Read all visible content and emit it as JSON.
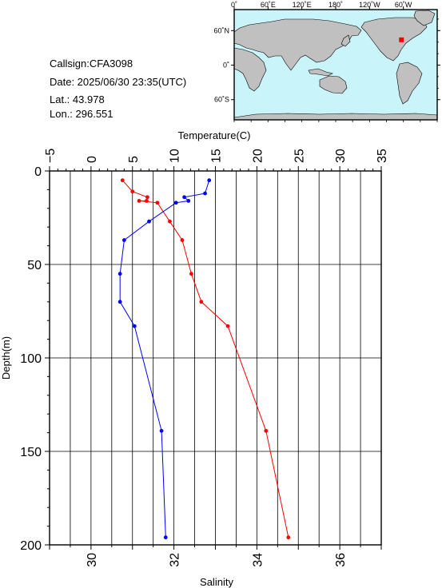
{
  "station": {
    "callsign": "Callsign:CFA3098",
    "date": "Date:  2025/06/30 23:35(UTC)",
    "lat": "Lat.:  43.978",
    "lon": "Lon.:  296.551"
  },
  "map": {
    "top_ticks": [
      "0˚",
      "60˚E",
      "120˚E",
      "180˚",
      "120˚W",
      "60˚W"
    ],
    "lat_ticks": [
      "60˚N",
      "0˚",
      "60˚S"
    ],
    "marker": {
      "lat": 43.978,
      "lon": 296.551
    },
    "colors": {
      "ocean": "#c8f4fa",
      "land": "#c0c0c0",
      "marker": "#ff0000"
    }
  },
  "chart_data": {
    "type": "line",
    "temperature_axis": {
      "label": "Temperature(C)",
      "ticks": [
        "−5",
        "0",
        "5",
        "10",
        "15",
        "20",
        "25",
        "30",
        "35"
      ],
      "tick_values": [
        -5,
        0,
        5,
        10,
        15,
        20,
        25,
        30,
        35
      ],
      "range": [
        -5,
        35
      ]
    },
    "salinity_axis": {
      "label": "Salinity",
      "ticks": [
        "30",
        "32",
        "34",
        "36"
      ],
      "tick_values": [
        30,
        32,
        34,
        36
      ],
      "range": [
        29,
        37
      ]
    },
    "depth_axis": {
      "label": "Depth(m)",
      "ticks": [
        "0",
        "50",
        "100",
        "150",
        "200"
      ],
      "tick_values": [
        0,
        50,
        100,
        150,
        200
      ],
      "range": [
        0,
        200
      ],
      "reversed": true
    },
    "grid": true,
    "series": [
      {
        "name": "Temperature",
        "color": "#ff0000",
        "axis": "temperature",
        "points": [
          {
            "x": 3.8,
            "depth": 5
          },
          {
            "x": 5.0,
            "depth": 11
          },
          {
            "x": 6.8,
            "depth": 14
          },
          {
            "x": 6.7,
            "depth": 16
          },
          {
            "x": 5.8,
            "depth": 16
          },
          {
            "x": 8.0,
            "depth": 17
          },
          {
            "x": 9.5,
            "depth": 27
          },
          {
            "x": 11.0,
            "depth": 37
          },
          {
            "x": 12.1,
            "depth": 55
          },
          {
            "x": 13.3,
            "depth": 70
          },
          {
            "x": 16.5,
            "depth": 83
          },
          {
            "x": 21.1,
            "depth": 139
          },
          {
            "x": 23.8,
            "depth": 196
          }
        ]
      },
      {
        "name": "Salinity",
        "color": "#0000ff",
        "axis": "salinity",
        "points": [
          {
            "x": 32.85,
            "depth": 5
          },
          {
            "x": 32.75,
            "depth": 12
          },
          {
            "x": 32.25,
            "depth": 14
          },
          {
            "x": 32.35,
            "depth": 16
          },
          {
            "x": 32.05,
            "depth": 17
          },
          {
            "x": 31.4,
            "depth": 27
          },
          {
            "x": 30.8,
            "depth": 37
          },
          {
            "x": 30.7,
            "depth": 55
          },
          {
            "x": 30.7,
            "depth": 70
          },
          {
            "x": 31.05,
            "depth": 83
          },
          {
            "x": 31.7,
            "depth": 139
          },
          {
            "x": 31.8,
            "depth": 196
          }
        ]
      }
    ]
  }
}
